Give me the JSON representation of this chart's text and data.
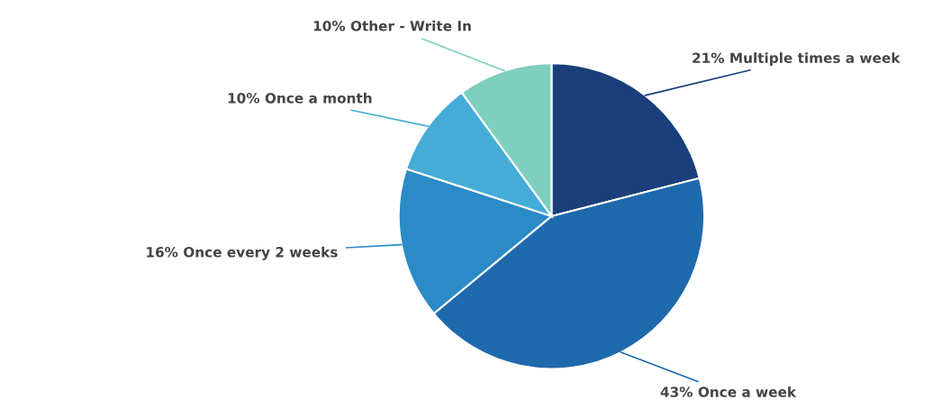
{
  "chart_data": {
    "type": "pie",
    "categories": [
      "Multiple times a week",
      "Once a week",
      "Once every 2 weeks",
      "Once a month",
      "Other - Write In"
    ],
    "values": [
      21,
      43,
      16,
      10,
      10
    ],
    "value_labels": [
      "21%",
      "43%",
      "16%",
      "10%",
      "10%"
    ],
    "colors": [
      "#1a3f7a",
      "#1f69ad",
      "#2a8bc6",
      "#45acd8",
      "#7fcfbf"
    ],
    "legend": false
  }
}
